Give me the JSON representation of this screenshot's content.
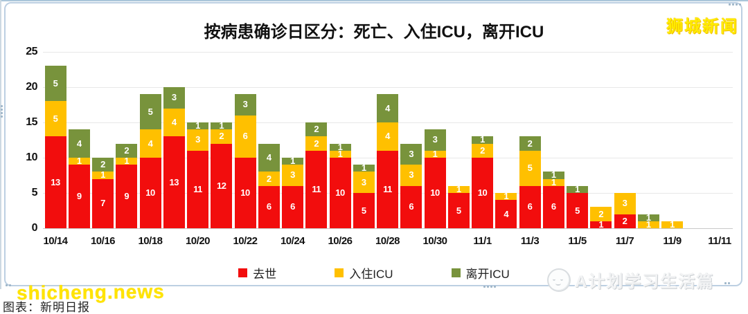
{
  "header": {
    "title": "按病患确诊日区分：死亡、入住ICU，离开ICU"
  },
  "watermarks": {
    "top_right": "狮城新闻",
    "bottom_left": "shicheng.news",
    "bottom_right": "A计划学习生活篇",
    "caption": "图表：新明日报"
  },
  "chart_data": {
    "type": "bar",
    "stacked": true,
    "title": "按病患确诊日区分：死亡、入住ICU，离开ICU",
    "categories": [
      "10/14",
      "10/15",
      "10/16",
      "10/17",
      "10/18",
      "10/19",
      "10/20",
      "10/21",
      "10/22",
      "10/23",
      "10/24",
      "10/25",
      "10/26",
      "10/27",
      "10/28",
      "10/29",
      "10/30",
      "10/31",
      "11/1",
      "11/2",
      "11/3",
      "11/4",
      "11/5",
      "11/6",
      "11/7",
      "11/8",
      "11/9",
      "11/10",
      "11/11"
    ],
    "series": [
      {
        "name": "去世",
        "color": "#f20d0d",
        "values": [
          13,
          9,
          7,
          9,
          10,
          13,
          11,
          12,
          10,
          6,
          6,
          11,
          10,
          5,
          11,
          6,
          10,
          5,
          10,
          4,
          6,
          6,
          5,
          1,
          2,
          0,
          0,
          0,
          0
        ]
      },
      {
        "name": "入住ICU",
        "color": "#ffc000",
        "values": [
          5,
          1,
          1,
          1,
          4,
          4,
          3,
          2,
          6,
          2,
          3,
          2,
          1,
          3,
          4,
          3,
          1,
          1,
          2,
          1,
          5,
          1,
          0,
          2,
          3,
          1,
          1,
          0,
          0
        ]
      },
      {
        "name": "离开ICU",
        "color": "#78933c",
        "values": [
          5,
          4,
          2,
          2,
          5,
          3,
          1,
          1,
          3,
          4,
          1,
          2,
          1,
          1,
          4,
          3,
          3,
          0,
          1,
          0,
          2,
          1,
          1,
          0,
          0,
          1,
          0,
          0,
          0
        ]
      }
    ],
    "x_tick_labels": [
      "10/14",
      "10/16",
      "10/18",
      "10/20",
      "10/22",
      "10/24",
      "10/26",
      "10/28",
      "10/30",
      "11/1",
      "11/3",
      "11/5",
      "11/7",
      "11/9",
      "11/11"
    ],
    "y_ticks": [
      0,
      5,
      10,
      15,
      20,
      25
    ],
    "ylim": [
      0,
      25
    ],
    "grid": true,
    "data_labels": "on-segments",
    "legend_position": "bottom"
  }
}
